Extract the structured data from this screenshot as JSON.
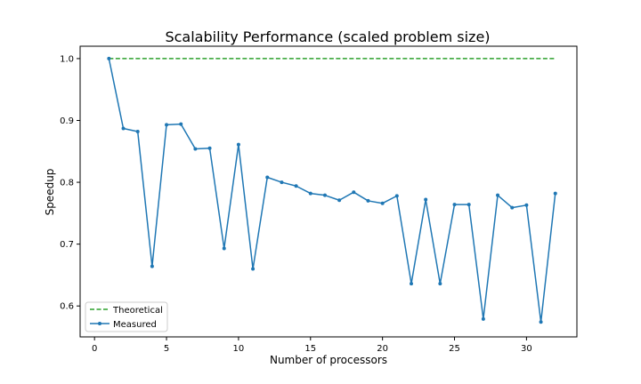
{
  "chart_data": {
    "type": "line",
    "title": "Scalability Performance (scaled problem size)",
    "xlabel": "Number of processors",
    "ylabel": "Speedup",
    "xlim": [
      -1,
      33.5
    ],
    "ylim": [
      0.55,
      1.02
    ],
    "xticks": [
      0,
      5,
      10,
      15,
      20,
      25,
      30
    ],
    "yticks": [
      0.6,
      0.7,
      0.8,
      0.9,
      1.0
    ],
    "xtick_labels": [
      "0",
      "5",
      "10",
      "15",
      "20",
      "25",
      "30"
    ],
    "ytick_labels": [
      "0.6",
      "0.7",
      "0.8",
      "0.9",
      "1.0"
    ],
    "grid": false,
    "legend_position": "lower-left",
    "series": [
      {
        "name": "Theoretical",
        "style": "dashed",
        "color": "#2ca02c",
        "x": [
          1,
          32
        ],
        "y": [
          1.0,
          1.0
        ]
      },
      {
        "name": "Measured",
        "style": "solid-markers",
        "color": "#1f77b4",
        "x": [
          1,
          2,
          3,
          4,
          5,
          6,
          7,
          8,
          9,
          10,
          11,
          12,
          13,
          14,
          15,
          16,
          17,
          18,
          19,
          20,
          21,
          22,
          23,
          24,
          25,
          26,
          27,
          28,
          29,
          30,
          31,
          32
        ],
        "y": [
          1.0,
          0.887,
          0.882,
          0.664,
          0.893,
          0.894,
          0.854,
          0.855,
          0.693,
          0.861,
          0.66,
          0.808,
          0.8,
          0.794,
          0.782,
          0.779,
          0.771,
          0.784,
          0.77,
          0.766,
          0.778,
          0.636,
          0.772,
          0.636,
          0.764,
          0.764,
          0.579,
          0.779,
          0.759,
          0.763,
          0.574,
          0.782
        ]
      }
    ]
  }
}
